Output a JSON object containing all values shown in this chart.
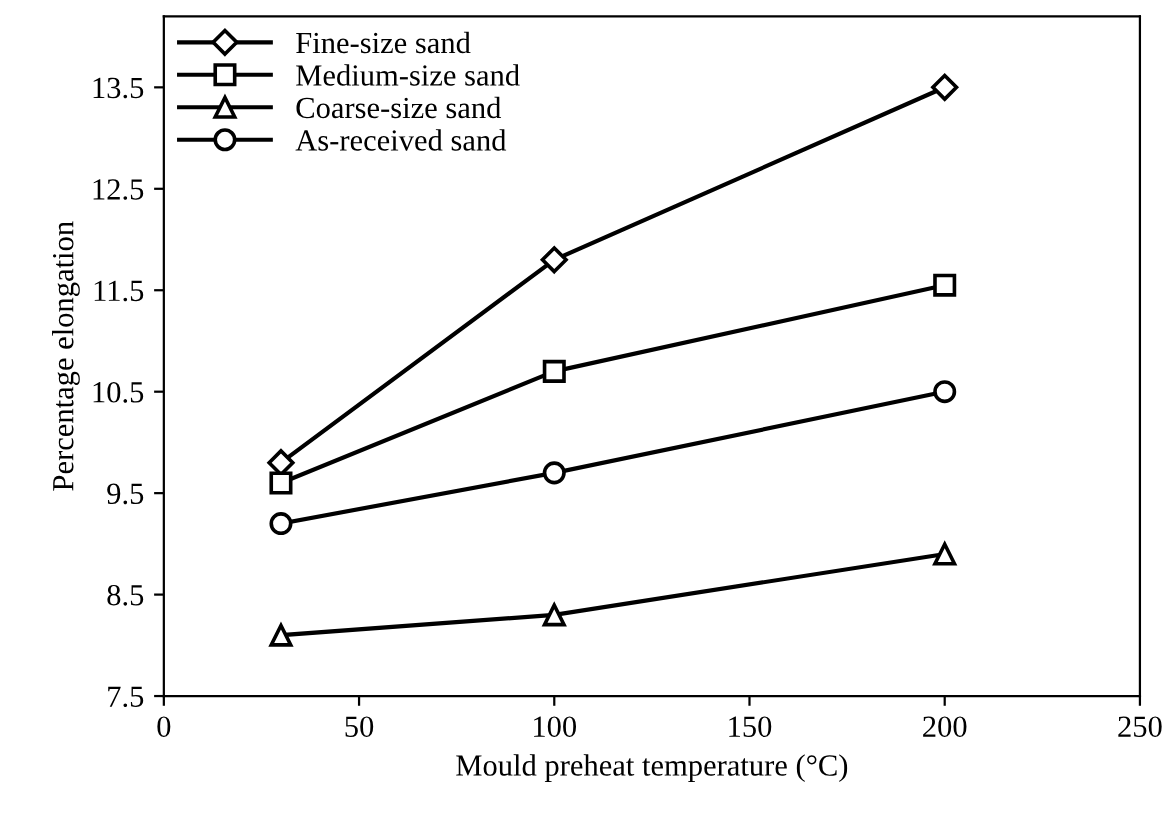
{
  "chart_data": {
    "type": "line",
    "xlabel": "Mould preheat temperature (°C)",
    "ylabel": "Percentage elongation",
    "x": [
      30,
      100,
      200
    ],
    "series": [
      {
        "name": "Fine-size sand",
        "color": "#000000",
        "marker": "diamond",
        "values": [
          9.8,
          11.8,
          13.5
        ]
      },
      {
        "name": "Medium-size sand",
        "color": "#000000",
        "marker": "square",
        "values": [
          9.6,
          10.7,
          11.55
        ]
      },
      {
        "name": "Coarse-size sand",
        "color": "#000000",
        "marker": "triangle",
        "values": [
          8.1,
          8.3,
          8.9
        ]
      },
      {
        "name": "As-received sand",
        "color": "#000000",
        "marker": "circle",
        "values": [
          9.2,
          9.7,
          10.5
        ]
      }
    ],
    "xlim": [
      0,
      250
    ],
    "xticks": [
      0,
      50,
      100,
      150,
      200,
      250
    ],
    "ylim": [
      7.5,
      14.2
    ],
    "yticks": [
      7.5,
      8.5,
      9.5,
      10.5,
      11.5,
      12.5,
      13.5
    ],
    "grid": false,
    "legend": "top left",
    "line_style": "solid"
  }
}
